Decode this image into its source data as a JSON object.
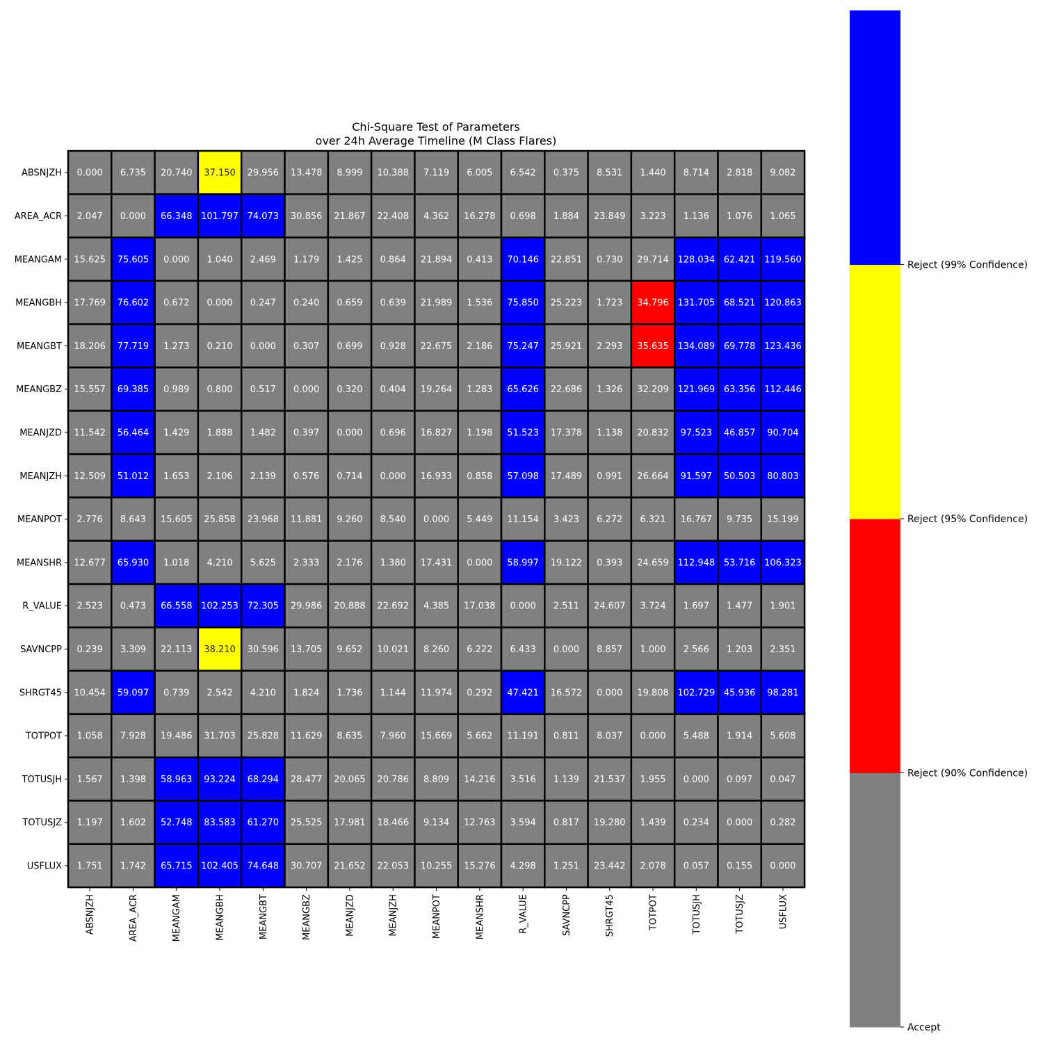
{
  "chart_data": {
    "type": "heatmap",
    "title_lines": [
      "Chi-Square Test of Parameters",
      "over 24h Average Timeline (M Class Flares)"
    ],
    "rows": [
      "ABSNJZH",
      "AREA_ACR",
      "MEANGAM",
      "MEANGBH",
      "MEANGBT",
      "MEANGBZ",
      "MEANJZD",
      "MEANJZH",
      "MEANPOT",
      "MEANSHR",
      "R_VALUE",
      "SAVNCPP",
      "SHRGT45",
      "TOTPOT",
      "TOTUSJH",
      "TOTUSJZ",
      "USFLUX"
    ],
    "columns": [
      "ABSNJZH",
      "AREA_ACR",
      "MEANGAM",
      "MEANGBH",
      "MEANGBT",
      "MEANGBZ",
      "MEANJZD",
      "MEANJZH",
      "MEANPOT",
      "MEANSHR",
      "R_VALUE",
      "SAVNCPP",
      "SHRGT45",
      "TOTPOT",
      "TOTUSJH",
      "TOTUSJZ",
      "USFLUX"
    ],
    "values": [
      [
        "0.000",
        "6.735",
        "20.740",
        "37.150",
        "29.956",
        "13.478",
        "8.999",
        "10.388",
        "7.119",
        "6.005",
        "6.542",
        "0.375",
        "8.531",
        "1.440",
        "8.714",
        "2.818",
        "9.082"
      ],
      [
        "2.047",
        "0.000",
        "66.348",
        "101.797",
        "74.073",
        "30.856",
        "21.867",
        "22.408",
        "4.362",
        "16.278",
        "0.698",
        "1.884",
        "23.849",
        "3.223",
        "1.136",
        "1.076",
        "1.065"
      ],
      [
        "15.625",
        "75.605",
        "0.000",
        "1.040",
        "2.469",
        "1.179",
        "1.425",
        "0.864",
        "21.894",
        "0.413",
        "70.146",
        "22.851",
        "0.730",
        "29.714",
        "128.034",
        "62.421",
        "119.560"
      ],
      [
        "17.769",
        "76.602",
        "0.672",
        "0.000",
        "0.247",
        "0.240",
        "0.659",
        "0.639",
        "21.989",
        "1.536",
        "75.850",
        "25.223",
        "1.723",
        "34.796",
        "131.705",
        "68.521",
        "120.863"
      ],
      [
        "18.206",
        "77.719",
        "1.273",
        "0.210",
        "0.000",
        "0.307",
        "0.699",
        "0.928",
        "22.675",
        "2.186",
        "75.247",
        "25.921",
        "2.293",
        "35.635",
        "134.089",
        "69.778",
        "123.436"
      ],
      [
        "15.557",
        "69.385",
        "0.989",
        "0.800",
        "0.517",
        "0.000",
        "0.320",
        "0.404",
        "19.264",
        "1.283",
        "65.626",
        "22.686",
        "1.326",
        "32.209",
        "121.969",
        "63.356",
        "112.446"
      ],
      [
        "11.542",
        "56.464",
        "1.429",
        "1.888",
        "1.482",
        "0.397",
        "0.000",
        "0.696",
        "16.827",
        "1.198",
        "51.523",
        "17.378",
        "1.138",
        "20.832",
        "97.523",
        "46.857",
        "90.704"
      ],
      [
        "12.509",
        "51.012",
        "1.653",
        "2.106",
        "2.139",
        "0.576",
        "0.714",
        "0.000",
        "16.933",
        "0.858",
        "57.098",
        "17.489",
        "0.991",
        "26.664",
        "91.597",
        "50.503",
        "80.803"
      ],
      [
        "2.776",
        "8.643",
        "15.605",
        "25.858",
        "23.968",
        "11.881",
        "9.260",
        "8.540",
        "0.000",
        "5.449",
        "11.154",
        "3.423",
        "6.272",
        "6.321",
        "16.767",
        "9.735",
        "15.199"
      ],
      [
        "12.677",
        "65.930",
        "1.018",
        "4.210",
        "5.625",
        "2.333",
        "2.176",
        "1.380",
        "17.431",
        "0.000",
        "58.997",
        "19.122",
        "0.393",
        "24.659",
        "112.948",
        "53.716",
        "106.323"
      ],
      [
        "2.523",
        "0.473",
        "66.558",
        "102.253",
        "72.305",
        "29.986",
        "20.888",
        "22.692",
        "4.385",
        "17.038",
        "0.000",
        "2.511",
        "24.607",
        "3.724",
        "1.697",
        "1.477",
        "1.901"
      ],
      [
        "0.239",
        "3.309",
        "22.113",
        "38.210",
        "30.596",
        "13.705",
        "9.652",
        "10.021",
        "8.260",
        "6.222",
        "6.433",
        "0.000",
        "8.857",
        "1.000",
        "2.566",
        "1.203",
        "2.351"
      ],
      [
        "10.454",
        "59.097",
        "0.739",
        "2.542",
        "4.210",
        "1.824",
        "1.736",
        "1.144",
        "11.974",
        "0.292",
        "47.421",
        "16.572",
        "0.000",
        "19.808",
        "102.729",
        "45.936",
        "98.281"
      ],
      [
        "1.058",
        "7.928",
        "19.486",
        "31.703",
        "25.828",
        "11.629",
        "8.635",
        "7.960",
        "15.669",
        "5.662",
        "11.191",
        "0.811",
        "8.037",
        "0.000",
        "5.488",
        "1.914",
        "5.608"
      ],
      [
        "1.567",
        "1.398",
        "58.963",
        "93.224",
        "68.294",
        "28.477",
        "20.065",
        "20.786",
        "8.809",
        "14.216",
        "3.516",
        "1.139",
        "21.537",
        "1.955",
        "0.000",
        "0.097",
        "0.047"
      ],
      [
        "1.197",
        "1.602",
        "52.748",
        "83.583",
        "61.270",
        "25.525",
        "17.981",
        "18.466",
        "9.134",
        "12.763",
        "3.594",
        "0.817",
        "19.280",
        "1.439",
        "0.234",
        "0.000",
        "0.282"
      ],
      [
        "1.751",
        "1.742",
        "65.715",
        "102.405",
        "74.648",
        "30.707",
        "21.652",
        "22.053",
        "10.255",
        "15.276",
        "4.298",
        "1.251",
        "23.442",
        "2.078",
        "0.057",
        "0.155",
        "0.000"
      ]
    ],
    "categories_map": [
      [
        0,
        0,
        0,
        2,
        0,
        0,
        0,
        0,
        0,
        0,
        0,
        0,
        0,
        0,
        0,
        0,
        0
      ],
      [
        0,
        0,
        3,
        3,
        3,
        0,
        0,
        0,
        0,
        0,
        0,
        0,
        0,
        0,
        0,
        0,
        0
      ],
      [
        0,
        3,
        0,
        0,
        0,
        0,
        0,
        0,
        0,
        0,
        3,
        0,
        0,
        0,
        3,
        3,
        3
      ],
      [
        0,
        3,
        0,
        0,
        0,
        0,
        0,
        0,
        0,
        0,
        3,
        0,
        0,
        1,
        3,
        3,
        3
      ],
      [
        0,
        3,
        0,
        0,
        0,
        0,
        0,
        0,
        0,
        0,
        3,
        0,
        0,
        1,
        3,
        3,
        3
      ],
      [
        0,
        3,
        0,
        0,
        0,
        0,
        0,
        0,
        0,
        0,
        3,
        0,
        0,
        0,
        3,
        3,
        3
      ],
      [
        0,
        3,
        0,
        0,
        0,
        0,
        0,
        0,
        0,
        0,
        3,
        0,
        0,
        0,
        3,
        3,
        3
      ],
      [
        0,
        3,
        0,
        0,
        0,
        0,
        0,
        0,
        0,
        0,
        3,
        0,
        0,
        0,
        3,
        3,
        3
      ],
      [
        0,
        0,
        0,
        0,
        0,
        0,
        0,
        0,
        0,
        0,
        0,
        0,
        0,
        0,
        0,
        0,
        0
      ],
      [
        0,
        3,
        0,
        0,
        0,
        0,
        0,
        0,
        0,
        0,
        3,
        0,
        0,
        0,
        3,
        3,
        3
      ],
      [
        0,
        0,
        3,
        3,
        3,
        0,
        0,
        0,
        0,
        0,
        0,
        0,
        0,
        0,
        0,
        0,
        0
      ],
      [
        0,
        0,
        0,
        2,
        0,
        0,
        0,
        0,
        0,
        0,
        0,
        0,
        0,
        0,
        0,
        0,
        0
      ],
      [
        0,
        3,
        0,
        0,
        0,
        0,
        0,
        0,
        0,
        0,
        3,
        0,
        0,
        0,
        3,
        3,
        3
      ],
      [
        0,
        0,
        0,
        0,
        0,
        0,
        0,
        0,
        0,
        0,
        0,
        0,
        0,
        0,
        0,
        0,
        0
      ],
      [
        0,
        0,
        3,
        3,
        3,
        0,
        0,
        0,
        0,
        0,
        0,
        0,
        0,
        0,
        0,
        0,
        0
      ],
      [
        0,
        0,
        3,
        3,
        3,
        0,
        0,
        0,
        0,
        0,
        0,
        0,
        0,
        0,
        0,
        0,
        0
      ],
      [
        0,
        0,
        3,
        3,
        3,
        0,
        0,
        0,
        0,
        0,
        0,
        0,
        0,
        0,
        0,
        0,
        0
      ]
    ],
    "colorbar": {
      "colors": [
        "#808080",
        "#ff0000",
        "#ffff00",
        "#0000ff"
      ],
      "tick_labels": [
        "Accept",
        "Reject (90% Confidence)",
        "Reject (95% Confidence)",
        "Reject (99% Confidence)"
      ]
    },
    "text_colors": {
      "light": "#ffffff",
      "dark": "#262626"
    },
    "grid_color": "#000000"
  }
}
